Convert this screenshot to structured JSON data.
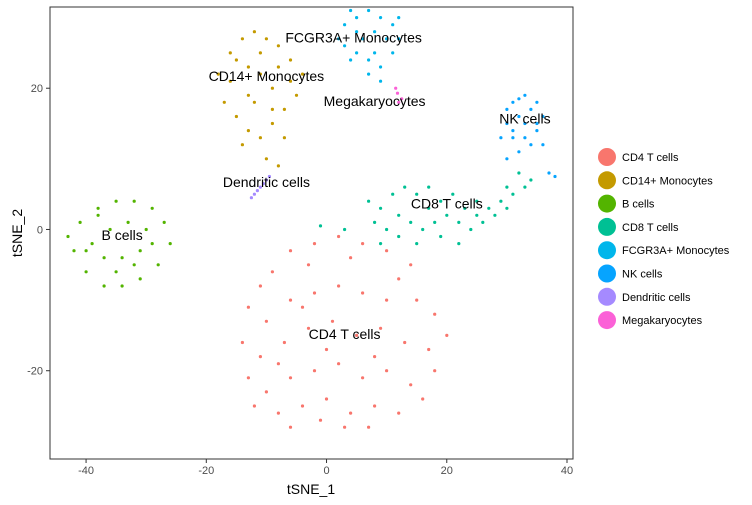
{
  "chart_data": {
    "type": "scatter",
    "xlabel": "tSNE_1",
    "ylabel": "tSNE_2",
    "xlim": [
      -46,
      41
    ],
    "ylim": [
      -32.5,
      31.5
    ],
    "x_ticks": [
      -40,
      -20,
      0,
      20,
      40
    ],
    "x_tick_labels": [
      "-40",
      "-20",
      "0",
      "20",
      "40"
    ],
    "y_ticks": [
      -20,
      0,
      20
    ],
    "y_tick_labels": [
      "-20",
      "0",
      "20"
    ],
    "grid": false,
    "legend_position": "right",
    "series": [
      {
        "name": "CD4 T cells",
        "color": "#F8766D",
        "label": "CD4 T cells",
        "label_pos": [
          3,
          -15.5
        ],
        "points": [
          [
            -11,
            -8
          ],
          [
            -9,
            -6
          ],
          [
            -6,
            -3
          ],
          [
            -2,
            -2
          ],
          [
            2,
            -1
          ],
          [
            6,
            -2
          ],
          [
            10,
            -3
          ],
          [
            14,
            -5
          ],
          [
            -13,
            -11
          ],
          [
            -10,
            -13
          ],
          [
            -6,
            -10
          ],
          [
            -2,
            -9
          ],
          [
            2,
            -8
          ],
          [
            6,
            -9
          ],
          [
            10,
            -10
          ],
          [
            15,
            -10
          ],
          [
            18,
            -12
          ],
          [
            -14,
            -16
          ],
          [
            -11,
            -18
          ],
          [
            -7,
            -16
          ],
          [
            -3,
            -14
          ],
          [
            1,
            -13
          ],
          [
            5,
            -15
          ],
          [
            9,
            -14
          ],
          [
            13,
            -16
          ],
          [
            17,
            -17
          ],
          [
            20,
            -15
          ],
          [
            -13,
            -21
          ],
          [
            -10,
            -23
          ],
          [
            -6,
            -21
          ],
          [
            -2,
            -20
          ],
          [
            2,
            -19
          ],
          [
            6,
            -21
          ],
          [
            10,
            -20
          ],
          [
            14,
            -22
          ],
          [
            18,
            -20
          ],
          [
            -12,
            -25
          ],
          [
            -8,
            -26
          ],
          [
            -4,
            -25
          ],
          [
            0,
            -24
          ],
          [
            4,
            -26
          ],
          [
            8,
            -25
          ],
          [
            12,
            -26
          ],
          [
            16,
            -24
          ],
          [
            -6,
            -28
          ],
          [
            -1,
            -27
          ],
          [
            3,
            -28
          ],
          [
            7,
            -28
          ],
          [
            -3,
            -5
          ],
          [
            4,
            -4
          ],
          [
            12,
            -7
          ],
          [
            -8,
            -19
          ],
          [
            8,
            -18
          ],
          [
            0,
            -17
          ],
          [
            -4,
            -11
          ]
        ]
      },
      {
        "name": "CD14+ Monocytes",
        "color": "#C49A00",
        "label": "CD14+ Monocytes",
        "label_pos": [
          -10,
          21
        ],
        "points": [
          [
            -18,
            22
          ],
          [
            -16,
            25
          ],
          [
            -14,
            27
          ],
          [
            -12,
            28
          ],
          [
            -10,
            27
          ],
          [
            -8,
            26
          ],
          [
            -6,
            24
          ],
          [
            -4,
            22
          ],
          [
            -5,
            19
          ],
          [
            -7,
            17
          ],
          [
            -9,
            15
          ],
          [
            -11,
            13
          ],
          [
            -13,
            14
          ],
          [
            -15,
            16
          ],
          [
            -17,
            18
          ],
          [
            -16,
            21
          ],
          [
            -13,
            23
          ],
          [
            -11,
            22
          ],
          [
            -9,
            20
          ],
          [
            -12,
            18
          ],
          [
            -14,
            12
          ],
          [
            -10,
            10
          ],
          [
            -8,
            9
          ],
          [
            -7,
            13
          ],
          [
            -6,
            21
          ],
          [
            -15,
            24
          ],
          [
            -11,
            25
          ],
          [
            -8,
            23
          ],
          [
            -13,
            19
          ],
          [
            -9,
            17
          ]
        ]
      },
      {
        "name": "B cells",
        "color": "#53B400",
        "label": "B cells",
        "label_pos": [
          -34,
          -1.5
        ],
        "points": [
          [
            -41,
            1
          ],
          [
            -38,
            3
          ],
          [
            -35,
            4
          ],
          [
            -32,
            4
          ],
          [
            -29,
            3
          ],
          [
            -27,
            1
          ],
          [
            -26,
            -2
          ],
          [
            -28,
            -5
          ],
          [
            -31,
            -7
          ],
          [
            -34,
            -8
          ],
          [
            -37,
            -8
          ],
          [
            -40,
            -6
          ],
          [
            -42,
            -3
          ],
          [
            -43,
            -1
          ],
          [
            -39,
            -2
          ],
          [
            -36,
            0
          ],
          [
            -33,
            1
          ],
          [
            -30,
            0
          ],
          [
            -31,
            -3
          ],
          [
            -34,
            -4
          ],
          [
            -37,
            -4
          ],
          [
            -35,
            -6
          ],
          [
            -32,
            -5
          ],
          [
            -29,
            -2
          ],
          [
            -38,
            2
          ],
          [
            -40,
            -3
          ]
        ]
      },
      {
        "name": "CD8 T cells",
        "color": "#00C094",
        "label": "CD8 T cells",
        "label_pos": [
          20,
          3
        ],
        "points": [
          [
            7,
            4
          ],
          [
            9,
            3
          ],
          [
            11,
            5
          ],
          [
            13,
            6
          ],
          [
            15,
            5
          ],
          [
            17,
            6
          ],
          [
            19,
            4
          ],
          [
            21,
            5
          ],
          [
            23,
            3
          ],
          [
            25,
            2
          ],
          [
            27,
            3
          ],
          [
            29,
            4
          ],
          [
            31,
            5
          ],
          [
            33,
            6
          ],
          [
            12,
            2
          ],
          [
            14,
            1
          ],
          [
            16,
            0
          ],
          [
            18,
            1
          ],
          [
            20,
            2
          ],
          [
            22,
            1
          ],
          [
            24,
            0
          ],
          [
            26,
            1
          ],
          [
            28,
            2
          ],
          [
            30,
            3
          ],
          [
            32,
            8
          ],
          [
            34,
            7
          ],
          [
            10,
            0
          ],
          [
            8,
            1
          ],
          [
            17,
            3
          ],
          [
            25,
            4
          ],
          [
            30,
            6
          ],
          [
            9,
            -2
          ],
          [
            12,
            -1
          ],
          [
            15,
            -2
          ],
          [
            19,
            -1
          ],
          [
            22,
            -2
          ],
          [
            -1,
            0.5
          ],
          [
            3,
            0
          ]
        ]
      },
      {
        "name": "FCGR3A+ Monocytes",
        "color": "#00B6EB",
        "label": "FCGR3A+ Monocytes",
        "label_pos": [
          4.5,
          26.5
        ],
        "points": [
          [
            2,
            27
          ],
          [
            3,
            29
          ],
          [
            5,
            30
          ],
          [
            7,
            31
          ],
          [
            9,
            30
          ],
          [
            11,
            29
          ],
          [
            12,
            27
          ],
          [
            11,
            25
          ],
          [
            9,
            23
          ],
          [
            7,
            24
          ],
          [
            5,
            25
          ],
          [
            4,
            24
          ],
          [
            6,
            27
          ],
          [
            8,
            28
          ],
          [
            10,
            27
          ],
          [
            8,
            25
          ],
          [
            5,
            28
          ],
          [
            3,
            26
          ],
          [
            7,
            22
          ],
          [
            9,
            21
          ],
          [
            12,
            30
          ],
          [
            4,
            31
          ]
        ]
      },
      {
        "name": "NK cells",
        "color": "#06A4FF",
        "label": "NK cells",
        "label_pos": [
          33,
          15
        ],
        "points": [
          [
            30,
            17
          ],
          [
            31,
            18
          ],
          [
            33,
            19
          ],
          [
            35,
            18
          ],
          [
            36,
            16
          ],
          [
            35,
            14
          ],
          [
            33,
            13
          ],
          [
            31,
            13
          ],
          [
            30,
            15
          ],
          [
            32,
            16
          ],
          [
            34,
            17
          ],
          [
            33,
            15
          ],
          [
            31,
            14
          ],
          [
            35,
            15
          ],
          [
            32,
            11
          ],
          [
            34,
            12
          ],
          [
            29,
            13
          ],
          [
            37,
            8
          ],
          [
            38,
            7.5
          ],
          [
            30,
            10
          ],
          [
            36,
            12
          ],
          [
            32,
            18.5
          ]
        ]
      },
      {
        "name": "Dendritic cells",
        "color": "#A58AFF",
        "label": "Dendritic cells",
        "label_pos": [
          -10,
          6
        ],
        "points": [
          [
            -12,
            5
          ],
          [
            -11,
            6
          ],
          [
            -10,
            7
          ],
          [
            -9.5,
            7.5
          ],
          [
            -11.5,
            5.5
          ],
          [
            -10.5,
            6.5
          ],
          [
            -12.5,
            4.5
          ]
        ]
      },
      {
        "name": "Megakaryocytes",
        "color": "#FB61D7",
        "label": "Megakaryocytes",
        "label_pos": [
          8,
          17.5
        ],
        "points": [
          [
            11.5,
            20
          ],
          [
            12,
            18
          ],
          [
            12.5,
            18.5
          ],
          [
            11.8,
            19.3
          ]
        ]
      }
    ]
  }
}
